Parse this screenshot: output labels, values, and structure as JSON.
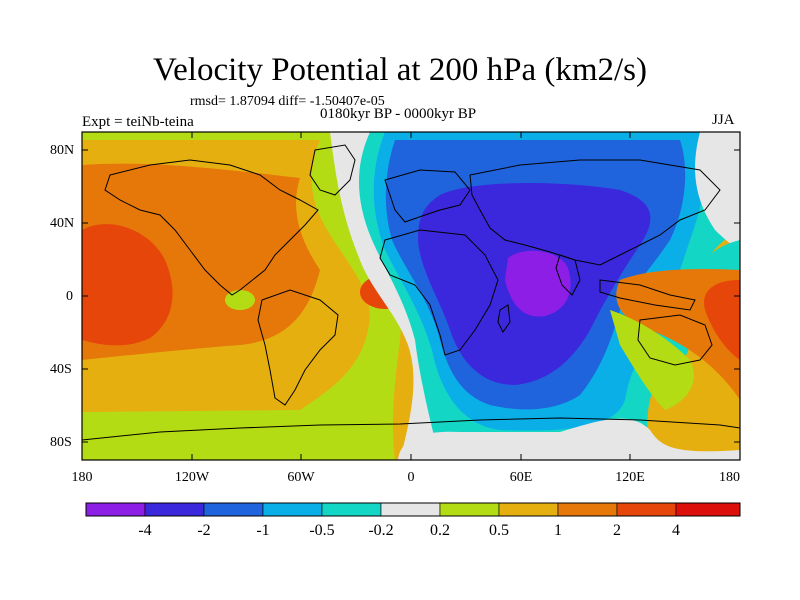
{
  "figure": {
    "title": "Velocity Potential at 200 hPa (km2/s)",
    "stats_line": "rmsd= 1.87094 diff= -1.50407e-05",
    "subtitle": "0180kyr BP - 0000kyr BP",
    "left_label": "Expt = teiNb-teina",
    "right_label": "JJA"
  },
  "axes": {
    "lat_ticks": [
      "80N",
      "40N",
      "0",
      "40S",
      "80S"
    ],
    "lon_ticks": [
      "180",
      "120W",
      "60W",
      "0",
      "60E",
      "120E",
      "180"
    ]
  },
  "colorbar": {
    "labels": [
      "-4",
      "-2",
      "-1",
      "-0.5",
      "-0.2",
      "0.2",
      "0.5",
      "1",
      "2",
      "4"
    ],
    "colors": [
      "#8d1ee6",
      "#3c28dc",
      "#1f64dc",
      "#0aafe8",
      "#13d7c4",
      "#e6e6e6",
      "#b4dc14",
      "#e6af10",
      "#e6780a",
      "#e6460a",
      "#dc0f0a"
    ]
  },
  "field_colors": {
    "purple": "#8d1ee6",
    "darkblue": "#3c28dc",
    "blue": "#1f64dc",
    "lightblue": "#0aafe8",
    "cyan": "#13d7c4",
    "gray": "#e6e6e6",
    "yellowgreen": "#b4dc14",
    "gold": "#e6af10",
    "orange": "#e6780a",
    "redorange": "#e6460a"
  }
}
